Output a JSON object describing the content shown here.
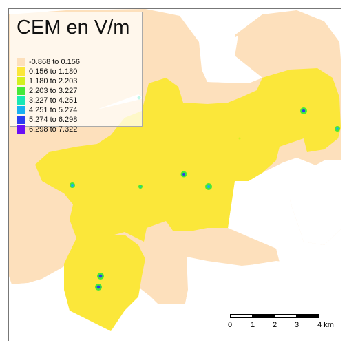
{
  "legend": {
    "title": "CEM en V/m",
    "items": [
      {
        "label": "-0.868 to 0.156",
        "color": "#fde0bc"
      },
      {
        "label": "0.156 to 1.180",
        "color": "#fbe73a"
      },
      {
        "label": "1.180 to 2.203",
        "color": "#d4f020"
      },
      {
        "label": "2.203 to 3.227",
        "color": "#46e83a"
      },
      {
        "label": "3.227 to 4.251",
        "color": "#19e8b4"
      },
      {
        "label": "4.251 to 5.274",
        "color": "#1ab0f0"
      },
      {
        "label": "5.274 to 6.298",
        "color": "#2a3cf0"
      },
      {
        "label": "6.298 to 7.322",
        "color": "#6a10f5"
      }
    ]
  },
  "scale_bar": {
    "ticks": [
      "0",
      "1",
      "2",
      "3",
      "4 km"
    ]
  },
  "colors": {
    "background": "#ffffff",
    "low_zone": "#fde0bc",
    "main_zone": "#fbe73a"
  }
}
